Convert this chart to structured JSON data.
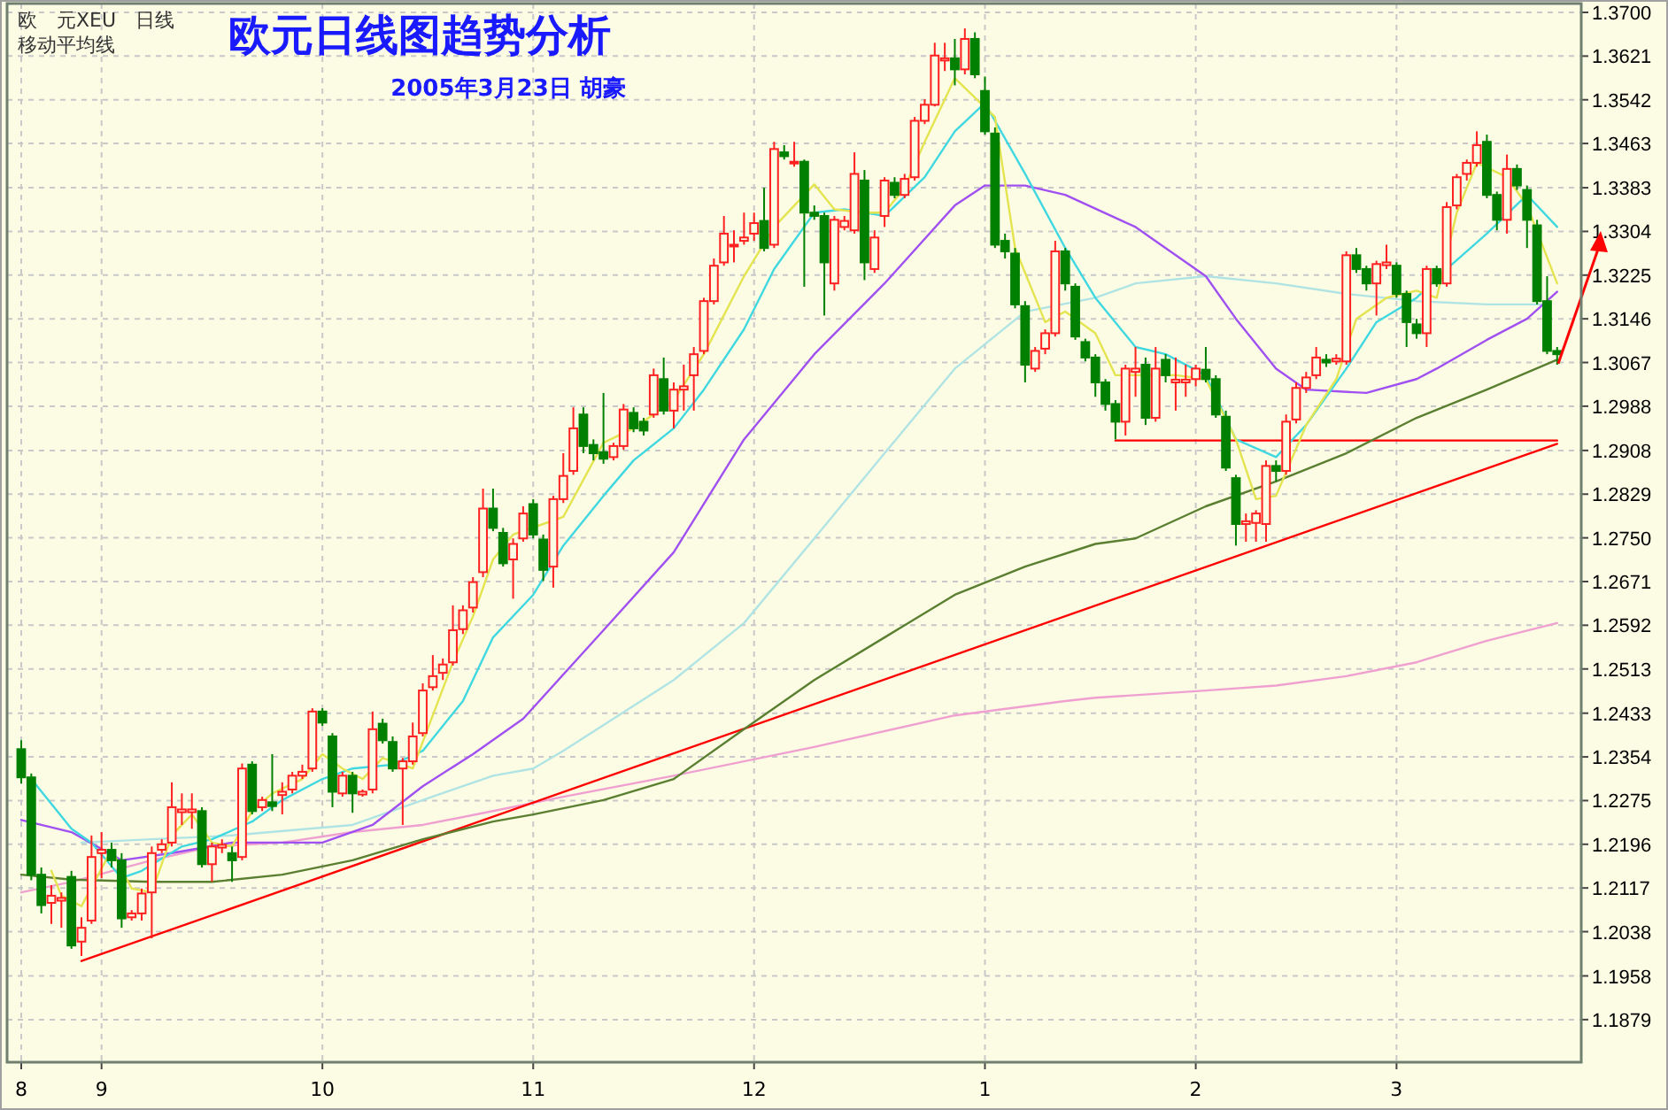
{
  "chart_data": {
    "type": "candlestick",
    "title": "欧元日线图趋势分析",
    "subtitle": "2005年3月23日 胡豪",
    "annotations": [
      "欧　元XEU　日线",
      "移动平均线"
    ],
    "grid": true,
    "ylim": [
      1.1802,
      1.3716
    ],
    "yticks": [
      {
        "value": 1.37,
        "label": "1.3700"
      },
      1.3621,
      1.3542,
      1.3463,
      1.3383,
      1.3304,
      1.3225,
      1.3146,
      1.3067,
      1.2988,
      1.2908,
      1.2829,
      {
        "value": 1.275,
        "label": "1.2750"
      },
      1.2671,
      1.2592,
      1.2513,
      1.2433,
      1.2354,
      1.2275,
      1.2196,
      1.2117,
      1.2038,
      1.1958,
      1.1879
    ],
    "categories": [
      "8",
      null,
      null,
      null,
      null,
      null,
      null,
      null,
      "9",
      null,
      null,
      null,
      null,
      null,
      null,
      null,
      null,
      null,
      null,
      null,
      null,
      null,
      null,
      null,
      null,
      null,
      null,
      null,
      null,
      null,
      "10",
      null,
      null,
      null,
      null,
      null,
      null,
      null,
      null,
      null,
      null,
      null,
      null,
      null,
      null,
      null,
      null,
      null,
      null,
      null,
      null,
      "11",
      null,
      null,
      null,
      null,
      null,
      null,
      null,
      null,
      null,
      null,
      null,
      null,
      null,
      null,
      null,
      null,
      null,
      null,
      null,
      null,
      null,
      "12",
      null,
      null,
      null,
      null,
      null,
      null,
      null,
      null,
      null,
      null,
      null,
      null,
      null,
      null,
      null,
      null,
      null,
      null,
      null,
      null,
      null,
      null,
      "1",
      null,
      null,
      null,
      null,
      null,
      null,
      null,
      null,
      null,
      null,
      null,
      null,
      null,
      null,
      null,
      null,
      null,
      null,
      null,
      null,
      "2",
      null,
      null,
      null,
      null,
      null,
      null,
      null,
      null,
      null,
      null,
      null,
      null,
      null,
      null,
      null,
      null,
      null,
      null,
      null,
      "3",
      null,
      null,
      null,
      null,
      null,
      null,
      null,
      null,
      null,
      null,
      null,
      null,
      null,
      null,
      null,
      null
    ],
    "ohlc": [
      [
        1.2368,
        1.2384,
        1.2306,
        1.2317
      ],
      [
        1.2317,
        1.2324,
        1.2131,
        1.2141
      ],
      [
        1.2141,
        1.2154,
        1.2071,
        1.2086
      ],
      [
        1.209,
        1.2122,
        1.2052,
        1.2103
      ],
      [
        1.2094,
        1.2109,
        1.2045,
        1.2099
      ],
      [
        1.2137,
        1.2148,
        1.2007,
        1.2013
      ],
      [
        1.202,
        1.2064,
        1.1994,
        1.2045
      ],
      [
        1.2058,
        1.2212,
        1.2052,
        1.2173
      ],
      [
        1.218,
        1.2218,
        1.2135,
        1.2186
      ],
      [
        1.2186,
        1.2199,
        1.2154,
        1.2167
      ],
      [
        1.2167,
        1.218,
        1.2045,
        1.2062
      ],
      [
        1.2064,
        1.2077,
        1.2058,
        1.2071
      ],
      [
        1.2071,
        1.2116,
        1.2058,
        1.2107
      ],
      [
        1.2109,
        1.2192,
        1.2026,
        1.218
      ],
      [
        1.2186,
        1.2205,
        1.218,
        1.2196
      ],
      [
        1.2199,
        1.2308,
        1.2192,
        1.2263
      ],
      [
        1.2254,
        1.2288,
        1.2231,
        1.2259
      ],
      [
        1.2254,
        1.2288,
        1.2224,
        1.2259
      ],
      [
        1.2256,
        1.2263,
        1.2154,
        1.216
      ],
      [
        1.216,
        1.2199,
        1.2128,
        1.2192
      ],
      [
        1.219,
        1.2205,
        1.218,
        1.2195
      ],
      [
        1.218,
        1.2192,
        1.2128,
        1.2167
      ],
      [
        1.2173,
        1.2342,
        1.2167,
        1.2333
      ],
      [
        1.234,
        1.2346,
        1.225,
        1.2256
      ],
      [
        1.2263,
        1.2282,
        1.2256,
        1.2276
      ],
      [
        1.2272,
        1.2359,
        1.2256,
        1.2265
      ],
      [
        1.2285,
        1.2308,
        1.225,
        1.2291
      ],
      [
        1.2295,
        1.2327,
        1.2288,
        1.232
      ],
      [
        1.232,
        1.234,
        1.2314,
        1.2327
      ],
      [
        1.2333,
        1.2442,
        1.2327,
        1.2436
      ],
      [
        1.2436,
        1.2442,
        1.241,
        1.2416
      ],
      [
        1.2391,
        1.2397,
        1.2263,
        1.2291
      ],
      [
        1.2288,
        1.2327,
        1.2282,
        1.232
      ],
      [
        1.232,
        1.2327,
        1.2253,
        1.2288
      ],
      [
        1.2286,
        1.2295,
        1.2282,
        1.2291
      ],
      [
        1.2295,
        1.2436,
        1.2288,
        1.2404
      ],
      [
        1.2414,
        1.2423,
        1.2378,
        1.2384
      ],
      [
        1.2381,
        1.2391,
        1.2327,
        1.2333
      ],
      [
        1.2333,
        1.2352,
        1.2231,
        1.2346
      ],
      [
        1.2346,
        1.2416,
        1.234,
        1.2391
      ],
      [
        1.2397,
        1.2487,
        1.2391,
        1.2474
      ],
      [
        1.248,
        1.2538,
        1.2474,
        1.25
      ],
      [
        1.2506,
        1.2532,
        1.2493,
        1.2521
      ],
      [
        1.2525,
        1.2628,
        1.2519,
        1.2583
      ],
      [
        1.2585,
        1.2628,
        1.2576,
        1.2619
      ],
      [
        1.2624,
        1.2679,
        1.2615,
        1.267
      ],
      [
        1.2688,
        1.2839,
        1.2679,
        1.2803
      ],
      [
        1.2803,
        1.2839,
        1.2762,
        1.2768
      ],
      [
        1.2759,
        1.2768,
        1.2698,
        1.2704
      ],
      [
        1.2711,
        1.2749,
        1.264,
        1.2739
      ],
      [
        1.2749,
        1.2807,
        1.2743,
        1.2794
      ],
      [
        1.2811,
        1.282,
        1.2749,
        1.2756
      ],
      [
        1.2747,
        1.2756,
        1.2672,
        1.2692
      ],
      [
        1.2698,
        1.2826,
        1.266,
        1.282
      ],
      [
        1.282,
        1.2903,
        1.2813,
        1.2862
      ],
      [
        1.2871,
        1.2986,
        1.2864,
        1.2948
      ],
      [
        1.2973,
        1.2986,
        1.2903,
        1.2916
      ],
      [
        1.2918,
        1.2928,
        1.289,
        1.2903
      ],
      [
        1.2905,
        1.3012,
        1.2884,
        1.2893
      ],
      [
        1.2896,
        1.2922,
        1.289,
        1.2916
      ],
      [
        1.2916,
        1.2992,
        1.2909,
        1.2982
      ],
      [
        1.2976,
        1.2986,
        1.2941,
        1.2948
      ],
      [
        1.296,
        1.2967,
        1.2935,
        1.2944
      ],
      [
        1.2973,
        1.3056,
        1.2967,
        1.3044
      ],
      [
        1.3037,
        1.3076,
        1.2973,
        1.298
      ],
      [
        1.298,
        1.3031,
        1.2948,
        1.3018
      ],
      [
        1.3018,
        1.3063,
        1.298,
        1.3024
      ],
      [
        1.3044,
        1.3095,
        1.298,
        1.3082
      ],
      [
        1.3088,
        1.3184,
        1.3082,
        1.3178
      ],
      [
        1.3178,
        1.3255,
        1.3172,
        1.3242
      ],
      [
        1.3248,
        1.3332,
        1.3242,
        1.33
      ],
      [
        1.3277,
        1.3306,
        1.3248,
        1.328
      ],
      [
        1.3287,
        1.3338,
        1.328,
        1.3293
      ],
      [
        1.33,
        1.3338,
        1.3287,
        1.3319
      ],
      [
        1.3323,
        1.3383,
        1.3268,
        1.3274
      ],
      [
        1.328,
        1.3466,
        1.3274,
        1.3453
      ],
      [
        1.3447,
        1.346,
        1.3434,
        1.344
      ],
      [
        1.3428,
        1.3466,
        1.3421,
        1.343
      ],
      [
        1.343,
        1.3434,
        1.3204,
        1.3338
      ],
      [
        1.3338,
        1.3351,
        1.3325,
        1.3332
      ],
      [
        1.3332,
        1.3338,
        1.3152,
        1.3248
      ],
      [
        1.321,
        1.3332,
        1.3197,
        1.3325
      ],
      [
        1.3312,
        1.3332,
        1.3306,
        1.3323
      ],
      [
        1.3306,
        1.3447,
        1.33,
        1.3408
      ],
      [
        1.3396,
        1.3415,
        1.3216,
        1.3248
      ],
      [
        1.3236,
        1.3306,
        1.3229,
        1.3293
      ],
      [
        1.3332,
        1.3402,
        1.3312,
        1.3396
      ],
      [
        1.3392,
        1.3402,
        1.3364,
        1.337
      ],
      [
        1.337,
        1.3408,
        1.3364,
        1.3399
      ],
      [
        1.3402,
        1.3511,
        1.3396,
        1.3504
      ],
      [
        1.3504,
        1.3543,
        1.3498,
        1.3533
      ],
      [
        1.3533,
        1.3645,
        1.353,
        1.3622
      ],
      [
        1.3613,
        1.3645,
        1.3594,
        1.3617
      ],
      [
        1.3617,
        1.3652,
        1.3568,
        1.3597
      ],
      [
        1.3597,
        1.3671,
        1.3588,
        1.3652
      ],
      [
        1.3652,
        1.3664,
        1.3581,
        1.3588
      ],
      [
        1.3558,
        1.3584,
        1.3479,
        1.3485
      ],
      [
        1.3481,
        1.3492,
        1.3274,
        1.328
      ],
      [
        1.3287,
        1.33,
        1.3255,
        1.3268
      ],
      [
        1.3264,
        1.3274,
        1.3165,
        1.3172
      ],
      [
        1.3169,
        1.3178,
        1.3031,
        1.3063
      ],
      [
        1.3056,
        1.3095,
        1.305,
        1.3088
      ],
      [
        1.3092,
        1.3127,
        1.3082,
        1.312
      ],
      [
        1.312,
        1.3287,
        1.3114,
        1.3268
      ],
      [
        1.3268,
        1.3274,
        1.3197,
        1.321
      ],
      [
        1.3204,
        1.321,
        1.3108,
        1.3114
      ],
      [
        1.3104,
        1.311,
        1.3069,
        1.3076
      ],
      [
        1.3076,
        1.3082,
        1.3005,
        1.3031
      ],
      [
        1.3031,
        1.3037,
        1.298,
        1.2992
      ],
      [
        1.2992,
        1.2999,
        1.2928,
        1.296
      ],
      [
        1.296,
        1.3063,
        1.2935,
        1.3056
      ],
      [
        1.305,
        1.3095,
        1.3005,
        1.3056
      ],
      [
        1.3063,
        1.3076,
        1.2954,
        1.2967
      ],
      [
        1.2967,
        1.3095,
        1.296,
        1.3056
      ],
      [
        1.3072,
        1.3082,
        1.3031,
        1.3044
      ],
      [
        1.3031,
        1.3076,
        1.298,
        1.3036
      ],
      [
        1.3031,
        1.3063,
        1.3005,
        1.3036
      ],
      [
        1.3037,
        1.3063,
        1.3024,
        1.3056
      ],
      [
        1.3054,
        1.3095,
        1.3031,
        1.3037
      ],
      [
        1.3037,
        1.3044,
        1.2967,
        1.2973
      ],
      [
        1.2969,
        1.298,
        1.2871,
        1.2877
      ],
      [
        1.2858,
        1.2864,
        1.2736,
        1.2775
      ],
      [
        1.2775,
        1.2794,
        1.2743,
        1.278
      ],
      [
        1.2777,
        1.28,
        1.2743,
        1.2794
      ],
      [
        1.2775,
        1.289,
        1.2743,
        1.288
      ],
      [
        1.288,
        1.289,
        1.2852,
        1.2871
      ],
      [
        1.2871,
        1.2973,
        1.2864,
        1.296
      ],
      [
        1.2964,
        1.3031,
        1.2957,
        1.3021
      ],
      [
        1.3021,
        1.305,
        1.3012,
        1.304
      ],
      [
        1.3044,
        1.3095,
        1.3037,
        1.3076
      ],
      [
        1.3072,
        1.3082,
        1.3059,
        1.3067
      ],
      [
        1.3069,
        1.3082,
        1.3063,
        1.3074
      ],
      [
        1.3069,
        1.3268,
        1.3063,
        1.3261
      ],
      [
        1.3261,
        1.3274,
        1.3229,
        1.3236
      ],
      [
        1.3236,
        1.3242,
        1.3197,
        1.321
      ],
      [
        1.321,
        1.3251,
        1.3152,
        1.3245
      ],
      [
        1.3243,
        1.328,
        1.3236,
        1.3248
      ],
      [
        1.3242,
        1.3248,
        1.3184,
        1.3191
      ],
      [
        1.3191,
        1.3197,
        1.3095,
        1.314
      ],
      [
        1.3136,
        1.3146,
        1.311,
        1.312
      ],
      [
        1.312,
        1.3242,
        1.3095,
        1.3236
      ],
      [
        1.3236,
        1.3242,
        1.3204,
        1.321
      ],
      [
        1.321,
        1.3357,
        1.3204,
        1.3348
      ],
      [
        1.3351,
        1.3408,
        1.3344,
        1.3402
      ],
      [
        1.3408,
        1.3434,
        1.3396,
        1.3428
      ],
      [
        1.3428,
        1.3485,
        1.3421,
        1.346
      ],
      [
        1.3466,
        1.3479,
        1.3364,
        1.337
      ],
      [
        1.337,
        1.3376,
        1.3306,
        1.3325
      ],
      [
        1.3325,
        1.3443,
        1.33,
        1.3417
      ],
      [
        1.3417,
        1.3425,
        1.3379,
        1.3387
      ],
      [
        1.3379,
        1.3387,
        1.3274,
        1.3325
      ],
      [
        1.3315,
        1.3325,
        1.3172,
        1.3178
      ],
      [
        1.3178,
        1.3223,
        1.3082,
        1.3088
      ],
      [
        1.3088,
        1.3095,
        1.3063,
        1.3082
      ]
    ],
    "series": [
      {
        "type": "line",
        "color": "#f0a0d0",
        "values": [
          1.2109,
          null,
          null,
          null,
          null,
          1.2128,
          null,
          null,
          null,
          null,
          null,
          null,
          null,
          1.2167,
          null,
          null,
          null,
          null,
          null,
          1.2192,
          null,
          null,
          null,
          null,
          null,
          null,
          1.2199,
          null,
          null,
          null,
          null,
          null,
          null,
          1.2218,
          null,
          null,
          null,
          null,
          null,
          null,
          1.2231,
          null,
          null,
          null,
          null,
          null,
          null,
          1.2256,
          null,
          null,
          null,
          null,
          null,
          null,
          1.2282,
          null,
          null,
          null,
          null,
          null,
          null,
          null,
          null,
          null,
          null,
          1.232,
          null,
          null,
          null,
          null,
          null,
          null,
          null,
          null,
          null,
          null,
          null,
          null,
          null,
          1.2372,
          null,
          null,
          null,
          null,
          null,
          null,
          null,
          null,
          null,
          null,
          null,
          null,
          null,
          1.2429,
          null,
          null,
          null,
          null,
          null,
          null,
          null,
          null,
          null,
          null,
          1.2455,
          null,
          null,
          1.2461,
          null,
          null,
          null,
          null,
          null,
          null,
          null,
          null,
          null,
          null,
          1.2474,
          null,
          null,
          null,
          null,
          null,
          null,
          1.2483,
          null,
          null,
          null,
          null,
          null,
          null,
          1.25,
          null,
          null,
          null,
          null,
          null,
          null,
          1.2525,
          null,
          null,
          null,
          null,
          null,
          null,
          1.2564,
          null,
          null,
          null,
          null,
          null,
          null,
          1.2596
        ]
      },
      {
        "type": "line",
        "color": "#ff0000",
        "values": [
          null,
          null,
          null,
          null,
          null,
          null,
          1.1985,
          null,
          null,
          null,
          null,
          null,
          null,
          null,
          null,
          null,
          null,
          null,
          null,
          null,
          null,
          null,
          null,
          null,
          null,
          null,
          null,
          null,
          null,
          null,
          null,
          null,
          null,
          null,
          null,
          null,
          null,
          null,
          null,
          null,
          null,
          null,
          null,
          null,
          null,
          null,
          null,
          null,
          null,
          null,
          null,
          null,
          null,
          null,
          null,
          null,
          null,
          null,
          null,
          null,
          null,
          null,
          null,
          null,
          null,
          null,
          null,
          null,
          null,
          null,
          null,
          null,
          null,
          null,
          null,
          null,
          null,
          null,
          null,
          null,
          null,
          null,
          null,
          null,
          null,
          null,
          null,
          null,
          null,
          null,
          null,
          null,
          null,
          null,
          null,
          null,
          null,
          null,
          null,
          null,
          null,
          null,
          null,
          null,
          null,
          null,
          null,
          null,
          null,
          null,
          null,
          null,
          null,
          null,
          null,
          null,
          null,
          null,
          null,
          null,
          null,
          null,
          null,
          null,
          null,
          null,
          null,
          null,
          null,
          null,
          null,
          null,
          null,
          null,
          null,
          null,
          null,
          null,
          null,
          null,
          null,
          null,
          null,
          null,
          null,
          null,
          null,
          null,
          null,
          null,
          null,
          null,
          null,
          1.292
        ]
      },
      {
        "type": "line",
        "color": "#ff0000",
        "values": [
          null,
          null,
          null,
          null,
          null,
          null,
          null,
          null,
          null,
          null,
          null,
          null,
          null,
          null,
          null,
          null,
          null,
          null,
          null,
          null,
          null,
          null,
          null,
          null,
          null,
          null,
          null,
          null,
          null,
          null,
          null,
          null,
          null,
          null,
          null,
          null,
          null,
          null,
          null,
          null,
          null,
          null,
          null,
          null,
          null,
          null,
          null,
          null,
          null,
          null,
          null,
          null,
          null,
          null,
          null,
          null,
          null,
          null,
          null,
          null,
          null,
          null,
          null,
          null,
          null,
          null,
          null,
          null,
          null,
          null,
          null,
          null,
          null,
          null,
          null,
          null,
          null,
          null,
          null,
          null,
          null,
          null,
          null,
          null,
          null,
          null,
          null,
          null,
          null,
          null,
          null,
          null,
          null,
          null,
          null,
          null,
          null,
          null,
          null,
          null,
          null,
          null,
          null,
          null,
          null,
          null,
          null,
          null,
          null,
          1.2926,
          null,
          null,
          null,
          null,
          null,
          null,
          null,
          null,
          null,
          null,
          null,
          null,
          null,
          null,
          null,
          null,
          null,
          null,
          null,
          null,
          null,
          null,
          null,
          null,
          null,
          null,
          null,
          null,
          null,
          null,
          null,
          null,
          null,
          null,
          null,
          null,
          null,
          null,
          null,
          null,
          null,
          null,
          null,
          1.2926
        ]
      },
      {
        "type": "line",
        "color": "#5a7f30",
        "values": [
          1.2141,
          null,
          null,
          null,
          null,
          1.2132,
          null,
          null,
          null,
          null,
          null,
          null,
          null,
          1.2128,
          null,
          null,
          null,
          null,
          null,
          1.2128,
          null,
          null,
          null,
          null,
          null,
          null,
          1.2141,
          null,
          null,
          null,
          null,
          null,
          null,
          1.2167,
          null,
          null,
          null,
          null,
          null,
          null,
          1.2205,
          null,
          null,
          null,
          null,
          null,
          null,
          1.2237,
          null,
          null,
          null,
          1.225,
          null,
          null,
          null,
          null,
          null,
          null,
          1.2276,
          null,
          null,
          null,
          null,
          null,
          null,
          1.2314,
          null,
          null,
          null,
          null,
          null,
          null,
          1.2404,
          null,
          null,
          null,
          null,
          null,
          null,
          1.2493,
          null,
          null,
          null,
          null,
          null,
          null,
          1.257,
          null,
          null,
          null,
          null,
          null,
          null,
          1.2647,
          null,
          null,
          null,
          null,
          null,
          null,
          1.2698,
          null,
          null,
          null,
          null,
          null,
          null,
          1.2739,
          null,
          null,
          null,
          1.2749,
          null,
          null,
          null,
          null,
          null,
          null,
          1.2807,
          null,
          null,
          null,
          null,
          null,
          null,
          1.2852,
          null,
          null,
          null,
          null,
          null,
          null,
          1.2903,
          null,
          null,
          null,
          null,
          null,
          null,
          1.2967,
          null,
          null,
          null,
          null,
          null,
          null,
          1.3018,
          null,
          null,
          null,
          null,
          null,
          null,
          1.3072
        ]
      },
      {
        "type": "line",
        "color": "#b0e4e4",
        "values": [
          null,
          null,
          null,
          null,
          null,
          null,
          1.2199,
          null,
          null,
          null,
          null,
          null,
          null,
          null,
          null,
          null,
          null,
          null,
          null,
          null,
          null,
          1.2212,
          null,
          null,
          null,
          null,
          null,
          null,
          null,
          null,
          null,
          null,
          null,
          1.2231,
          null,
          null,
          null,
          null,
          null,
          null,
          1.2276,
          null,
          null,
          null,
          null,
          null,
          null,
          1.232,
          null,
          null,
          null,
          1.2333,
          null,
          null,
          1.2365,
          null,
          null,
          null,
          null,
          null,
          null,
          null,
          null,
          null,
          null,
          1.2493,
          null,
          null,
          null,
          null,
          null,
          null,
          1.2596,
          null,
          null,
          null,
          null,
          null,
          null,
          1.2749,
          null,
          null,
          null,
          null,
          null,
          null,
          1.2903,
          null,
          null,
          null,
          null,
          null,
          null,
          1.3056,
          null,
          null,
          null,
          null,
          null,
          null,
          1.3159,
          null,
          null,
          null,
          null,
          null,
          null,
          1.3184,
          null,
          null,
          null,
          1.321,
          null,
          null,
          null,
          null,
          null,
          null,
          1.3223,
          null,
          null,
          null,
          null,
          null,
          null,
          1.321,
          null,
          null,
          null,
          null,
          null,
          null,
          1.3191,
          null,
          null,
          null,
          null,
          null,
          null,
          1.3178,
          null,
          null,
          null,
          null,
          null,
          null,
          1.3172,
          null,
          null,
          null,
          null,
          null,
          1.3172,
          null
        ]
      },
      {
        "type": "line",
        "color": "#a050f0",
        "values": [
          1.224,
          null,
          null,
          null,
          null,
          1.2218,
          null,
          null,
          null,
          null,
          1.2167,
          null,
          null,
          null,
          null,
          1.218,
          null,
          null,
          null,
          null,
          null,
          1.2199,
          null,
          null,
          null,
          null,
          1.2199,
          null,
          null,
          null,
          1.2199,
          null,
          null,
          null,
          null,
          1.2231,
          null,
          null,
          null,
          null,
          1.2301,
          null,
          null,
          null,
          null,
          1.2359,
          null,
          null,
          null,
          null,
          1.2423,
          null,
          null,
          null,
          null,
          null,
          null,
          null,
          1.2583,
          null,
          null,
          null,
          null,
          null,
          null,
          1.2724,
          null,
          null,
          null,
          null,
          null,
          null,
          1.2928,
          null,
          null,
          null,
          null,
          null,
          null,
          1.3082,
          null,
          null,
          null,
          null,
          null,
          null,
          1.321,
          null,
          null,
          null,
          null,
          null,
          null,
          1.3351,
          null,
          null,
          1.3387,
          null,
          null,
          null,
          1.3387,
          null,
          null,
          null,
          1.337,
          null,
          null,
          null,
          null,
          null,
          null,
          1.3312,
          null,
          null,
          null,
          null,
          null,
          null,
          1.3223,
          null,
          null,
          1.3146,
          null,
          null,
          null,
          1.3056,
          null,
          null,
          1.3018,
          null,
          null,
          null,
          null,
          null,
          1.3012,
          null,
          null,
          null,
          null,
          1.3037,
          null,
          1.3056,
          null,
          null,
          null,
          null,
          1.3108,
          null,
          null,
          null,
          1.3146,
          null,
          null,
          1.3195
        ]
      },
      {
        "type": "line",
        "color": "#40d8e0",
        "values": [
          null,
          1.2314,
          null,
          null,
          null,
          1.2224,
          null,
          1.2199,
          null,
          null,
          1.2135,
          null,
          1.2148,
          null,
          null,
          null,
          1.2192,
          null,
          null,
          1.2205,
          null,
          null,
          null,
          1.2237,
          null,
          null,
          1.2276,
          null,
          null,
          null,
          1.2314,
          null,
          null,
          1.2333,
          null,
          null,
          null,
          1.234,
          null,
          null,
          1.2365,
          null,
          null,
          null,
          1.2455,
          null,
          null,
          1.257,
          null,
          null,
          null,
          1.2647,
          null,
          null,
          1.2736,
          null,
          null,
          null,
          1.2826,
          null,
          null,
          1.289,
          null,
          null,
          null,
          1.2948,
          null,
          null,
          1.3018,
          null,
          null,
          null,
          1.3127,
          null,
          null,
          1.3236,
          null,
          null,
          null,
          1.3338,
          null,
          null,
          1.3344,
          null,
          null,
          null,
          1.3332,
          null,
          null,
          null,
          1.3402,
          null,
          null,
          1.3485,
          null,
          null,
          1.3536,
          null,
          null,
          null,
          1.3408,
          null,
          null,
          null,
          1.3274,
          null,
          null,
          1.3184,
          null,
          null,
          null,
          1.3095,
          null,
          null,
          1.3082,
          null,
          null,
          null,
          1.3044,
          null,
          null,
          1.2928,
          null,
          null,
          null,
          1.2896,
          null,
          null,
          1.2954,
          null,
          null,
          null,
          1.3056,
          null,
          null,
          1.314,
          null,
          null,
          null,
          1.3184,
          null,
          null,
          1.3236,
          null,
          null,
          null,
          1.33,
          null,
          null,
          null,
          1.337,
          null,
          null,
          1.3312
        ]
      },
      {
        "type": "line",
        "color": "#e4e450",
        "values": [
          null,
          null,
          null,
          1.2148,
          1.2103,
          null,
          1.2084,
          null,
          null,
          1.2186,
          null,
          1.2116,
          null,
          1.2109,
          null,
          1.2212,
          null,
          1.225,
          null,
          1.2199,
          null,
          1.2192,
          null,
          1.2256,
          null,
          1.2288,
          null,
          null,
          1.2314,
          null,
          1.2359,
          null,
          1.2333,
          null,
          1.2314,
          null,
          1.2352,
          null,
          null,
          1.2333,
          null,
          1.2429,
          null,
          1.2525,
          null,
          1.2608,
          null,
          1.2711,
          null,
          1.2756,
          null,
          null,
          1.2775,
          null,
          1.2788,
          null,
          null,
          null,
          1.2922,
          null,
          null,
          1.2948,
          null,
          null,
          null,
          1.2999,
          null,
          null,
          1.3082,
          null,
          null,
          null,
          1.3223,
          null,
          null,
          1.3312,
          null,
          null,
          null,
          1.3389,
          null,
          1.3344,
          null,
          null,
          1.3338,
          null,
          1.3338,
          null,
          1.3383,
          null,
          1.3466,
          null,
          null,
          1.3581,
          null,
          null,
          null,
          1.3511,
          null,
          1.3274,
          null,
          null,
          1.314,
          null,
          1.3159,
          null,
          null,
          1.312,
          null,
          1.3044,
          null,
          null,
          null,
          null,
          null,
          1.3044,
          null,
          null,
          1.3037,
          null,
          null,
          1.2928,
          null,
          1.282,
          null,
          1.2826,
          null,
          null,
          1.2954,
          null,
          null,
          1.3037,
          null,
          1.3146,
          null,
          null,
          1.3184,
          null,
          null,
          1.3197,
          null,
          1.3184,
          null,
          1.3338,
          null,
          1.3428,
          null,
          null,
          1.3402,
          null,
          1.3351,
          null,
          null,
          1.321
        ]
      }
    ]
  }
}
